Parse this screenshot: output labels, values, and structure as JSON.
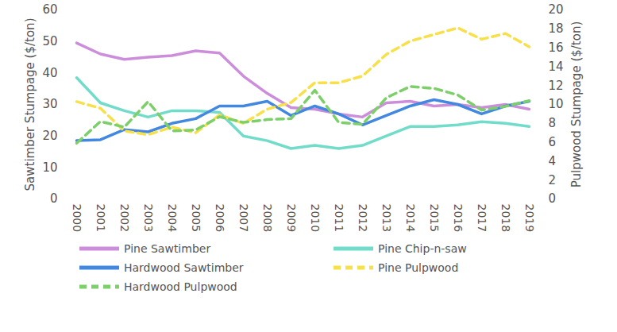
{
  "chart_data": {
    "type": "line",
    "ylabel": "Sawtimber Stumpage ($/ton)",
    "y2label": "Pulpwood Stumpage ($/ton)",
    "categories": [
      "2000",
      "2001",
      "2002",
      "2003",
      "2004",
      "2005",
      "2006",
      "2007",
      "2008",
      "2009",
      "2010",
      "2011",
      "2012",
      "2013",
      "2014",
      "2015",
      "2016",
      "2017",
      "2018",
      "2019"
    ],
    "ylim": [
      0,
      60
    ],
    "yticks": [
      0,
      10,
      20,
      30,
      40,
      50,
      60
    ],
    "y2lim": [
      0,
      20
    ],
    "y2ticks": [
      0,
      2,
      4,
      6,
      8,
      10,
      12,
      14,
      16,
      18,
      20
    ],
    "grid": false,
    "legend": "bottom",
    "series": [
      {
        "name": "Pine Sawtimber",
        "color": "#cc8ddb",
        "line_style": "solid",
        "values": [
          49.5,
          46,
          44.3,
          45,
          45.5,
          47,
          46.3,
          39,
          33.5,
          29,
          28.5,
          27,
          26,
          30.5,
          31,
          29.5,
          30,
          29,
          30,
          28.5
        ]
      },
      {
        "name": "Pine Chip-n-saw",
        "color": "#72dccb",
        "line_style": "solid",
        "values": [
          38.5,
          30.5,
          28,
          26,
          28,
          28,
          27.5,
          20,
          18.5,
          16,
          17,
          16,
          17,
          20,
          23,
          23,
          23.5,
          24.5,
          24,
          23
        ]
      },
      {
        "name": "Hardwood Sawtimber",
        "color": "#4287e0",
        "line_style": "solid",
        "values": [
          18.5,
          18.8,
          22,
          21.3,
          24,
          25.5,
          29.5,
          29.5,
          31,
          26.5,
          29.5,
          27,
          23.5,
          26.5,
          29.5,
          31.5,
          30,
          27,
          29.5,
          31
        ]
      },
      {
        "name": "Pine Pulpwood",
        "color": "#f7e04a",
        "line_style": "dashed",
        "axis": "y2",
        "values": [
          10.3,
          9.6,
          7.2,
          6.8,
          7.6,
          7,
          8.9,
          8,
          9.5,
          10.2,
          12.3,
          12.3,
          13,
          15.3,
          16.7,
          17.4,
          18.1,
          16.9,
          17.5,
          16.1
        ]
      },
      {
        "name": "Hardwood Pulpwood",
        "color": "#7dcf6a",
        "line_style": "dashed",
        "axis": "y2",
        "values": [
          5.9,
          8.2,
          7.6,
          10.3,
          7.2,
          7.3,
          8.7,
          8.1,
          8.4,
          8.5,
          11.5,
          8.1,
          7.9,
          10.7,
          11.9,
          11.7,
          11,
          9.4,
          9.8,
          10.4
        ]
      }
    ]
  }
}
